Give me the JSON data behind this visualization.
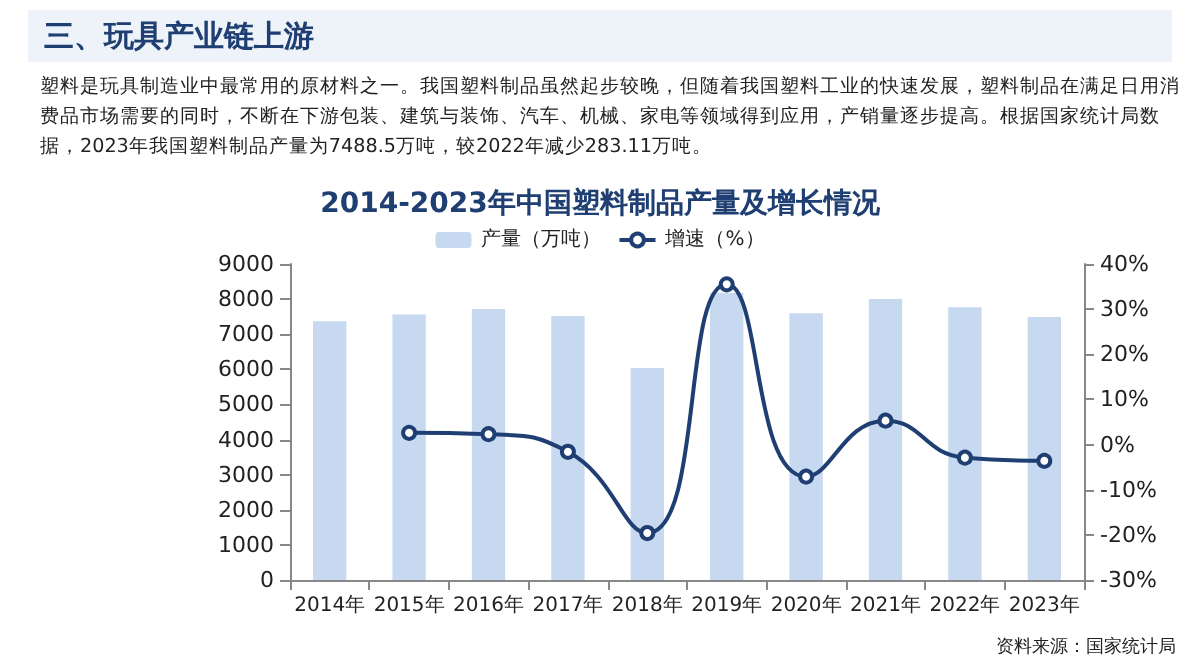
{
  "chart_data": {
    "type": "bar",
    "title": "2014-2023年中国塑料制品产量及增长情况",
    "annotations": [
      "三、玩具产业链上游",
      "塑料是玩具制造业中最常用的原材料之一。我国塑料制品虽然起步较晚，但随着我国塑料工业的快速发展，塑料制品在满足日用消费品市场需要的同时，不断在下游包装、建筑与装饰、汽车、机械、家电等领域得到应用，产销量逐步提高。根据国家统计局数据，2023年我国塑料制品产量为7488.5万吨，较2022年减少283.11万吨。",
      "资料来源：国家统计局"
    ],
    "categories": [
      "2014年",
      "2015年",
      "2016年",
      "2017年",
      "2018年",
      "2019年",
      "2020年",
      "2021年",
      "2022年",
      "2023年"
    ],
    "series": [
      {
        "name": "产量（万吨）",
        "color": "#c6d9f0",
        "values": [
          7370,
          7560,
          7720,
          7520,
          6040,
          8180,
          7600,
          8000,
          7770,
          7490
        ]
      },
      {
        "name": "增速（%）",
        "type": "line",
        "axis": "y2",
        "color": "#1f3f73",
        "marker": "circle",
        "values": [
          null,
          2.6,
          2.3,
          -1.6,
          -19.6,
          35.5,
          -7.1,
          5.3,
          -2.9,
          -3.6
        ]
      }
    ],
    "ylim": [
      0,
      9000
    ],
    "yticks": [
      0,
      1000,
      2000,
      3000,
      4000,
      5000,
      6000,
      7000,
      8000,
      9000
    ],
    "y2lim": [
      -30,
      40
    ],
    "y2ticks": [
      {
        "value": -30,
        "label": "-30%"
      },
      {
        "value": -20,
        "label": "-20%"
      },
      {
        "value": -10,
        "label": "-10%"
      },
      {
        "value": 0,
        "label": "0%"
      },
      {
        "value": 10,
        "label": "10%"
      },
      {
        "value": 20,
        "label": "20%"
      },
      {
        "value": 30,
        "label": "30%"
      },
      {
        "value": 40,
        "label": "40%"
      }
    ],
    "grid": false,
    "legend": "top"
  }
}
